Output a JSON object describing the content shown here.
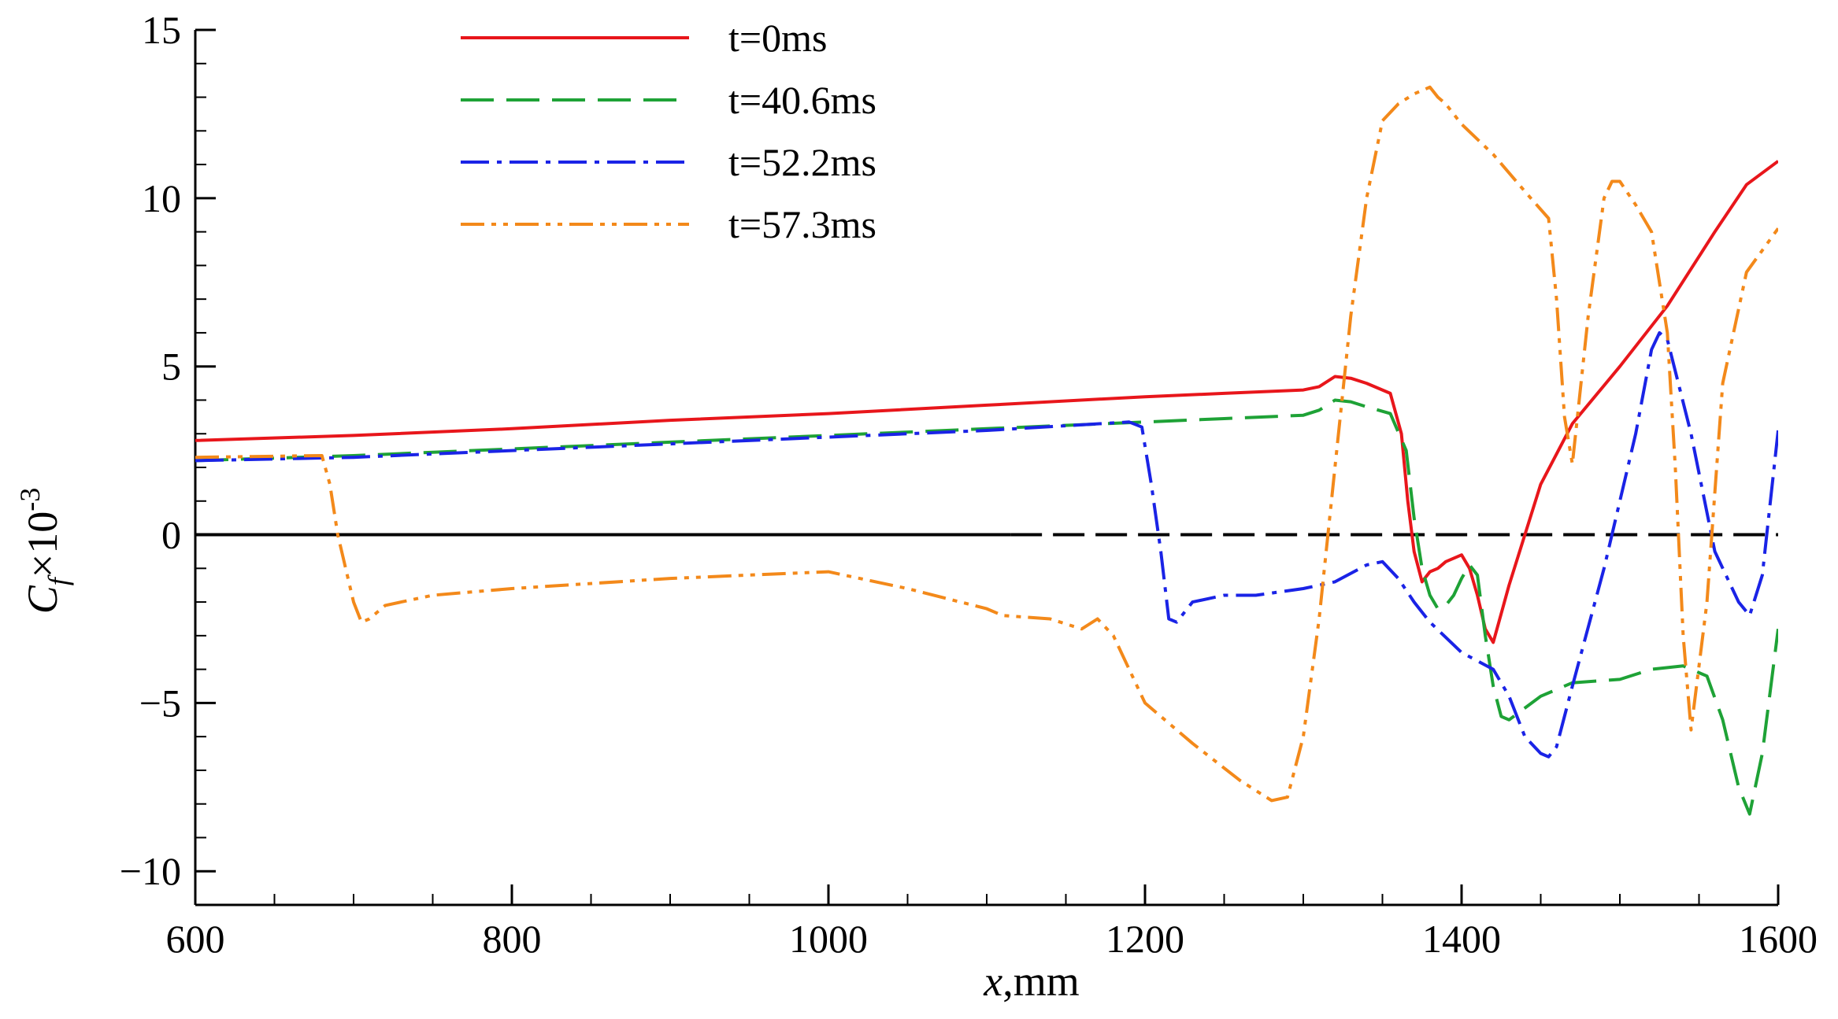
{
  "chart_data": {
    "type": "line",
    "title": "",
    "xlabel": "x,mm",
    "xlabel_var": "x",
    "xlabel_unit": ",mm",
    "ylabel": "Cf×10-3",
    "ylabel_var": "C",
    "ylabel_sub": "f",
    "ylabel_mult": "×10",
    "ylabel_exp": "-3",
    "xlim": [
      600,
      1600
    ],
    "ylim": [
      -11,
      15
    ],
    "x_ticks": [
      600,
      800,
      1000,
      1200,
      1400,
      1600
    ],
    "x_tick_labels": [
      "600",
      "800",
      "1000",
      "1200",
      "1400",
      "1600"
    ],
    "x_minor_step": 50,
    "y_ticks": [
      -10,
      -5,
      0,
      5,
      10,
      15
    ],
    "y_tick_labels": [
      "−10",
      "−5",
      "0",
      "5",
      "10",
      "15"
    ],
    "y_minor_step": 1,
    "grid": false,
    "legend_position": "top-center",
    "zero_line": {
      "value": 0,
      "color": "#000000",
      "dash_from": 1115
    },
    "series": [
      {
        "name": "t=0ms",
        "color": "#e8161b",
        "dash": "",
        "x": [
          600,
          700,
          800,
          900,
          1000,
          1100,
          1200,
          1250,
          1300,
          1310,
          1320,
          1330,
          1340,
          1355,
          1362,
          1366,
          1370,
          1375,
          1380,
          1385,
          1390,
          1400,
          1405,
          1410,
          1415,
          1420,
          1430,
          1450,
          1470,
          1500,
          1530,
          1560,
          1580,
          1600
        ],
        "y": [
          2.8,
          2.95,
          3.15,
          3.4,
          3.6,
          3.85,
          4.1,
          4.2,
          4.3,
          4.4,
          4.7,
          4.65,
          4.5,
          4.2,
          3.0,
          1.0,
          -0.5,
          -1.4,
          -1.1,
          -1.0,
          -0.8,
          -0.6,
          -1.0,
          -1.8,
          -2.8,
          -3.2,
          -1.5,
          1.5,
          3.3,
          5.0,
          6.8,
          9.0,
          10.4,
          11.1
        ]
      },
      {
        "name": "t=40.6ms",
        "color": "#1ea236",
        "dash": "42 16",
        "x": [
          600,
          700,
          800,
          900,
          1000,
          1100,
          1200,
          1250,
          1300,
          1310,
          1320,
          1330,
          1340,
          1355,
          1365,
          1370,
          1375,
          1380,
          1385,
          1390,
          1395,
          1400,
          1405,
          1410,
          1415,
          1420,
          1425,
          1430,
          1450,
          1470,
          1500,
          1520,
          1540,
          1555,
          1565,
          1575,
          1582,
          1590,
          1600
        ],
        "y": [
          2.2,
          2.35,
          2.55,
          2.75,
          2.95,
          3.15,
          3.35,
          3.45,
          3.55,
          3.7,
          4.0,
          3.95,
          3.8,
          3.6,
          2.5,
          0.5,
          -1.0,
          -1.8,
          -2.2,
          -2.1,
          -1.8,
          -1.3,
          -0.9,
          -1.2,
          -3.0,
          -4.5,
          -5.4,
          -5.5,
          -4.8,
          -4.4,
          -4.3,
          -4.0,
          -3.9,
          -4.2,
          -5.5,
          -7.5,
          -8.3,
          -6.5,
          -2.8
        ]
      },
      {
        "name": "t=52.2ms",
        "color": "#1a23e6",
        "dash": "36 10 6 10",
        "x": [
          600,
          700,
          800,
          900,
          1000,
          1100,
          1190,
          1198,
          1204,
          1210,
          1215,
          1220,
          1230,
          1250,
          1270,
          1300,
          1320,
          1340,
          1350,
          1360,
          1370,
          1380,
          1400,
          1420,
          1430,
          1440,
          1450,
          1455,
          1460,
          1470,
          1490,
          1510,
          1520,
          1525,
          1530,
          1545,
          1560,
          1575,
          1582,
          1590,
          1600
        ],
        "y": [
          2.2,
          2.3,
          2.5,
          2.7,
          2.9,
          3.1,
          3.35,
          3.2,
          1.5,
          -0.5,
          -2.5,
          -2.6,
          -2.0,
          -1.8,
          -1.8,
          -1.6,
          -1.4,
          -0.9,
          -0.8,
          -1.3,
          -2.0,
          -2.6,
          -3.5,
          -4.0,
          -4.8,
          -6.0,
          -6.5,
          -6.6,
          -6.3,
          -4.5,
          -1.0,
          3.0,
          5.5,
          6.0,
          5.8,
          3.0,
          -0.5,
          -2.0,
          -2.4,
          -1.2,
          3.1
        ]
      },
      {
        "name": "t=57.3ms",
        "color": "#f3891a",
        "dash": "30 9 6 9 6 9",
        "x": [
          600,
          680,
          685,
          690,
          700,
          705,
          710,
          720,
          730,
          750,
          800,
          900,
          1000,
          1050,
          1100,
          1110,
          1140,
          1160,
          1170,
          1180,
          1200,
          1230,
          1260,
          1280,
          1290,
          1300,
          1310,
          1320,
          1330,
          1340,
          1350,
          1360,
          1370,
          1380,
          1385,
          1390,
          1400,
          1420,
          1440,
          1455,
          1460,
          1465,
          1470,
          1480,
          1490,
          1495,
          1500,
          1510,
          1520,
          1530,
          1535,
          1540,
          1545,
          1555,
          1565,
          1580,
          1600
        ],
        "y": [
          2.3,
          2.35,
          1.5,
          0,
          -2.0,
          -2.6,
          -2.5,
          -2.1,
          -2.0,
          -1.8,
          -1.6,
          -1.3,
          -1.1,
          -1.6,
          -2.2,
          -2.4,
          -2.5,
          -2.8,
          -2.5,
          -3.0,
          -5.0,
          -6.2,
          -7.3,
          -7.9,
          -7.8,
          -6.0,
          -2.5,
          2.0,
          6.5,
          10.0,
          12.3,
          12.8,
          13.1,
          13.3,
          13.0,
          12.8,
          12.2,
          11.3,
          10.2,
          9.4,
          7.0,
          3.5,
          2.1,
          6.5,
          10.0,
          10.5,
          10.5,
          9.8,
          9.0,
          6.0,
          2.0,
          -3.0,
          -5.8,
          -2.0,
          4.5,
          7.8,
          9.1
        ]
      }
    ]
  }
}
